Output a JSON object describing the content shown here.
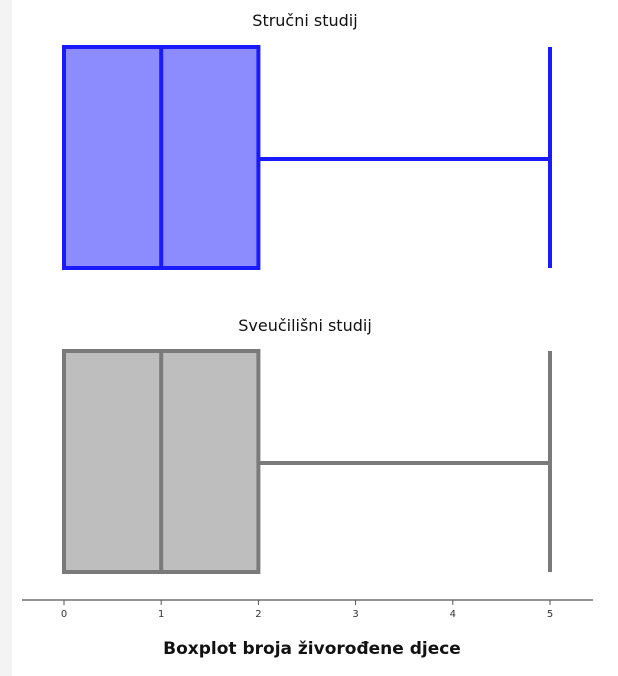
{
  "chart_data": {
    "type": "boxplot",
    "xlabel": "Boxplot broja živorođene djece",
    "xlim": [
      0,
      5
    ],
    "xticks": [
      "0",
      "1",
      "2",
      "3",
      "4",
      "5"
    ],
    "grid": false,
    "series": [
      {
        "name": "Stručni studij",
        "min": 0,
        "q1": 0,
        "median": 1,
        "q3": 2,
        "max": 5,
        "fill": "#8c8cff",
        "stroke": "#1a1aff"
      },
      {
        "name": "Sveučilišni studij",
        "min": 0,
        "q1": 0,
        "median": 1,
        "q3": 2,
        "max": 5,
        "fill": "#bebebe",
        "stroke": "#7a7a7a"
      }
    ]
  }
}
